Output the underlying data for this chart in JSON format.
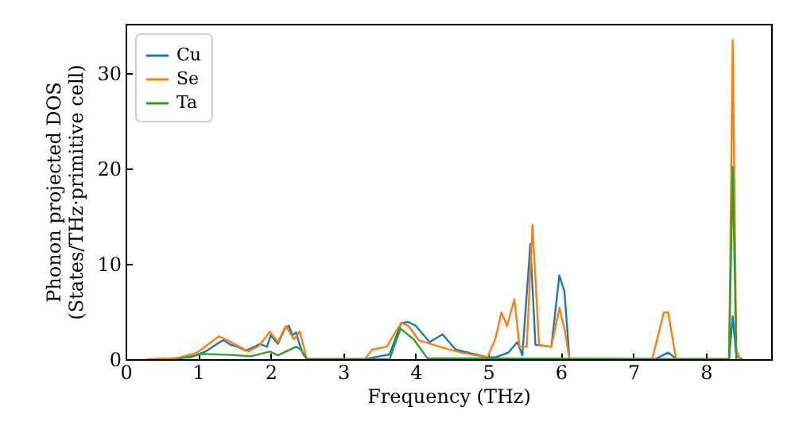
{
  "chart_data": {
    "type": "line",
    "xlabel": "Frequency (THz)",
    "ylabel": "Phonon projected DOS\n(States/THz·primitive cell)",
    "xlim": [
      0,
      8.9
    ],
    "ylim": [
      0,
      35.2
    ],
    "xticks": [
      0,
      1,
      2,
      3,
      4,
      5,
      6,
      7,
      8
    ],
    "yticks": [
      0,
      10,
      20,
      30
    ],
    "grid": false,
    "legend": "top left",
    "marker": "none",
    "line_style": "solid",
    "series": [
      {
        "name": "Cu",
        "color": "#1f77b4",
        "x": [
          0.5,
          0.9,
          1.0,
          1.1,
          1.2,
          1.3,
          1.35,
          1.45,
          1.55,
          1.65,
          1.75,
          1.85,
          1.95,
          2.0,
          2.1,
          2.2,
          2.25,
          2.3,
          2.35,
          2.4,
          2.45,
          2.5,
          3.3,
          3.5,
          3.64,
          3.8,
          3.9,
          4.0,
          4.19,
          4.37,
          4.55,
          4.99,
          5.1,
          5.28,
          5.4,
          5.47,
          5.58,
          5.65,
          5.87,
          5.98,
          6.05,
          6.12,
          7.3,
          7.48,
          7.6,
          8.32,
          8.37,
          8.42,
          8.5
        ],
        "values": [
          0,
          0.2,
          0.5,
          0.8,
          1.3,
          1.8,
          2.0,
          1.5,
          1.3,
          0.9,
          1.2,
          1.6,
          1.3,
          2.5,
          1.6,
          3.3,
          3.5,
          2.5,
          2.8,
          1.5,
          0.5,
          0,
          0,
          0.3,
          0.5,
          3.8,
          3.9,
          3.5,
          1.8,
          2.6,
          1.0,
          0.2,
          0.2,
          0.7,
          1.8,
          0.4,
          12.1,
          1.5,
          1.3,
          8.8,
          7.1,
          0,
          0,
          0.7,
          0,
          0,
          4.5,
          0.3,
          0
        ]
      },
      {
        "name": "Se",
        "color": "#ff7f0e",
        "x": [
          0.3,
          0.7,
          0.99,
          1.18,
          1.29,
          1.4,
          1.5,
          1.69,
          1.84,
          1.99,
          2.1,
          2.21,
          2.32,
          2.4,
          2.5,
          3.3,
          3.4,
          3.6,
          3.8,
          3.9,
          4.04,
          4.33,
          4.62,
          4.99,
          5.1,
          5.18,
          5.26,
          5.36,
          5.43,
          5.53,
          5.61,
          5.7,
          5.87,
          5.98,
          6.05,
          6.12,
          7.26,
          7.42,
          7.48,
          7.59,
          8.32,
          8.37,
          8.42,
          8.47
        ],
        "values": [
          0,
          0.1,
          0.7,
          1.8,
          2.4,
          2.0,
          1.6,
          0.8,
          1.4,
          2.9,
          1.8,
          3.5,
          2.1,
          2.9,
          0,
          0,
          1.0,
          1.3,
          3.8,
          3.5,
          2.0,
          1.3,
          0.7,
          0.2,
          2.2,
          4.9,
          3.5,
          6.3,
          1.3,
          1.3,
          14.1,
          1.5,
          1.3,
          5.4,
          3.2,
          0,
          0,
          4.9,
          4.9,
          0,
          0,
          33.5,
          1.0,
          0
        ]
      },
      {
        "name": "Ta",
        "color": "#2ca02c",
        "x": [
          0.7,
          1.07,
          1.44,
          1.73,
          1.99,
          2.1,
          2.35,
          2.42,
          2.5,
          3.64,
          3.79,
          3.97,
          4.16,
          8.32,
          8.37,
          8.42
        ],
        "values": [
          0,
          0.55,
          0.45,
          0.3,
          0.8,
          0.4,
          1.3,
          1.0,
          0,
          0,
          3.2,
          2.1,
          0.1,
          0,
          20.2,
          0
        ]
      }
    ]
  }
}
